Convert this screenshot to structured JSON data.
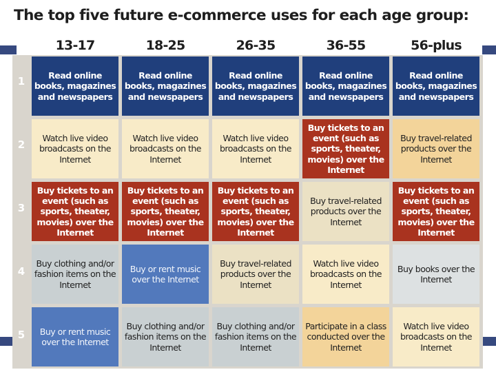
{
  "title": "The top five future e-commerce uses for each age group:",
  "age_groups": [
    "13-17",
    "18-25",
    "26-35",
    "36-55",
    "56-plus"
  ],
  "colors": {
    "blue": "#203f7c",
    "cream": "#f8ebc8",
    "orange": "#f3d49a",
    "red": "#a9331f",
    "tan": "#ebe1c4",
    "gray": "#c9d0d2",
    "light_blue": "#5279bc",
    "light_gray": "#dde1e2"
  },
  "rows": [
    {
      "rank": "1",
      "cells": [
        {
          "text": "Read online books, magazines and newspapers",
          "style": "blue"
        },
        {
          "text": "Read online books, magazines and newspapers",
          "style": "blue"
        },
        {
          "text": "Read online books, magazines and newspapers",
          "style": "blue"
        },
        {
          "text": "Read online books, magazines and newspapers",
          "style": "blue"
        },
        {
          "text": "Read online books, magazines and newspapers",
          "style": "blue"
        }
      ]
    },
    {
      "rank": "2",
      "cells": [
        {
          "text": "Watch live video broadcasts on the Internet",
          "style": "cream"
        },
        {
          "text": "Watch live video broadcasts on the Internet",
          "style": "cream"
        },
        {
          "text": "Watch live video broadcasts on the Internet",
          "style": "cream"
        },
        {
          "text": "Buy tickets to an event (such as sports, theater, movies) over the Internet",
          "style": "red"
        },
        {
          "text": "Buy travel-related products over the Internet",
          "style": "orange"
        }
      ]
    },
    {
      "rank": "3",
      "cells": [
        {
          "text": "Buy tickets to an event (such as sports, theater, movies) over the Internet",
          "style": "red"
        },
        {
          "text": "Buy tickets to an event (such as sports, theater, movies) over the Internet",
          "style": "red"
        },
        {
          "text": "Buy tickets to an event (such as sports, theater, movies) over the Internet",
          "style": "red"
        },
        {
          "text": "Buy travel-related products over the Internet",
          "style": "tan"
        },
        {
          "text": "Buy tickets to an event (such as sports, theater, movies) over the Internet",
          "style": "red"
        }
      ]
    },
    {
      "rank": "4",
      "cells": [
        {
          "text": "Buy clothing and/or fashion items on the Internet",
          "style": "gray"
        },
        {
          "text": "Buy or rent music over the Internet",
          "style": "lblue"
        },
        {
          "text": "Buy travel-related products over the Internet",
          "style": "tan"
        },
        {
          "text": "Watch live video broadcasts on the Internet",
          "style": "cream"
        },
        {
          "text": "Buy books over the Internet",
          "style": "lgray"
        }
      ]
    },
    {
      "rank": "5",
      "cells": [
        {
          "text": "Buy or rent music over the Internet",
          "style": "lblue"
        },
        {
          "text": "Buy clothing and/or fashion items on the Internet",
          "style": "gray"
        },
        {
          "text": "Buy clothing and/or fashion items on the Internet",
          "style": "gray"
        },
        {
          "text": "Participate in a class conducted over the Internet",
          "style": "orange"
        },
        {
          "text": "Watch live video broadcasts on the Internet",
          "style": "cream"
        }
      ]
    }
  ]
}
